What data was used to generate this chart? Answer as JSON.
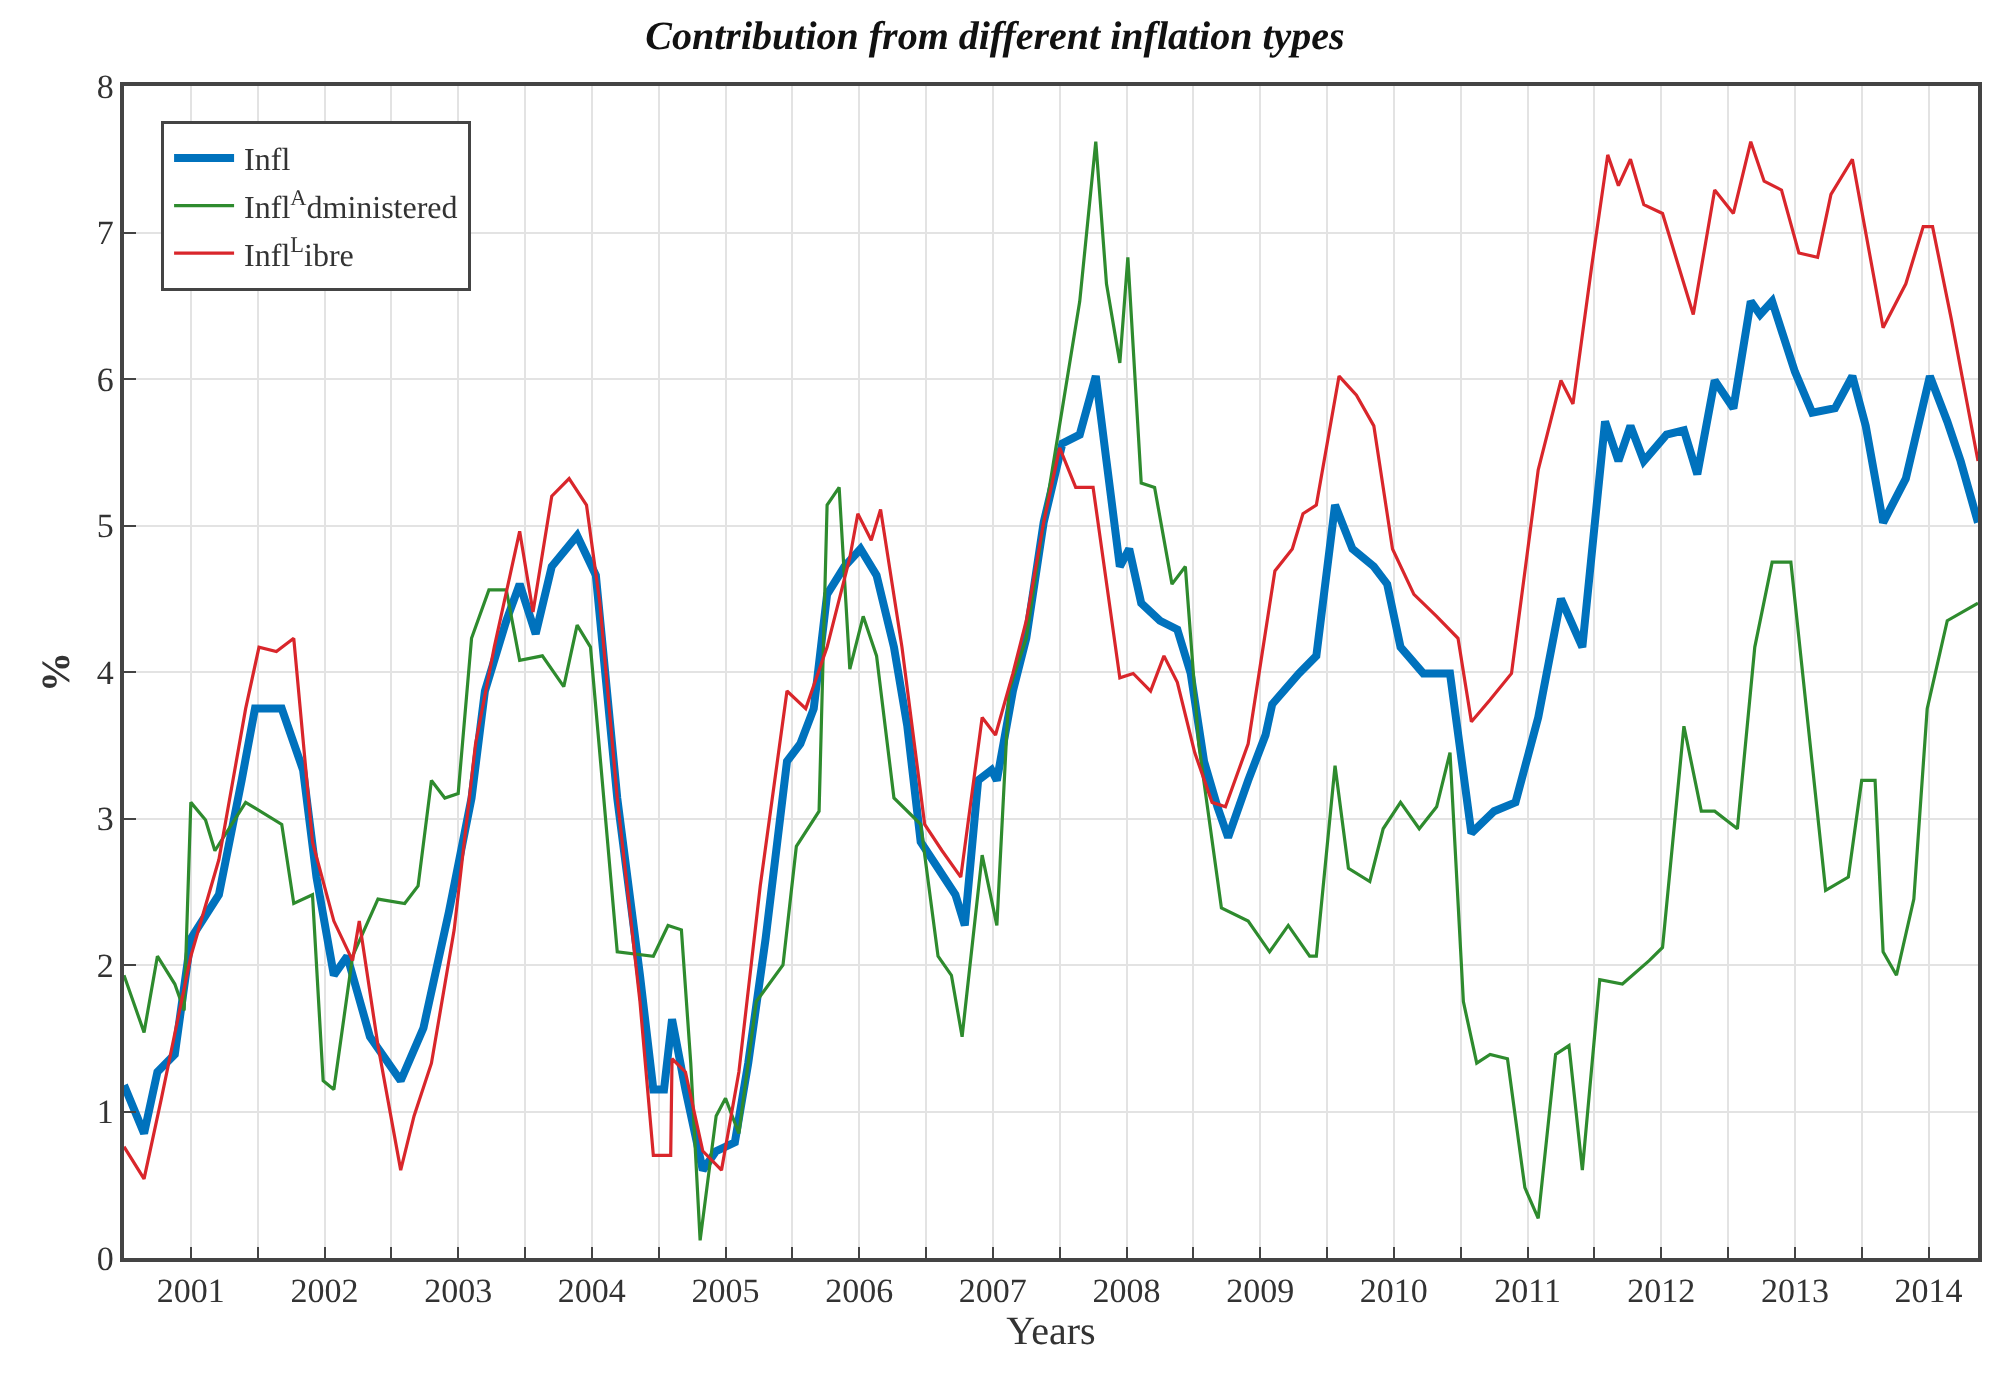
{
  "chart_data": {
    "type": "line",
    "title": "Contribution from different inflation types",
    "xlabel": "Years",
    "ylabel": "%",
    "xlim": [
      2000.5,
      2014.37
    ],
    "ylim": [
      0,
      8
    ],
    "xticks": [
      2001,
      {
        "value": 2001.5,
        "label": null
      },
      2002,
      {
        "value": 2002.5,
        "label": null
      },
      2003,
      {
        "value": 2003.5,
        "label": null
      },
      2004,
      {
        "value": 2004.5,
        "label": null
      },
      2005,
      {
        "value": 2005.5,
        "label": null
      },
      2006,
      {
        "value": 2006.5,
        "label": null
      },
      2007,
      {
        "value": 2007.5,
        "label": null
      },
      2008,
      {
        "value": 2008.5,
        "label": null
      },
      2009,
      {
        "value": 2009.5,
        "label": null
      },
      2010,
      {
        "value": 2010.5,
        "label": null
      },
      2011,
      {
        "value": 2011.5,
        "label": null
      },
      2012,
      {
        "value": 2012.5,
        "label": null
      },
      2013,
      {
        "value": 2013.5,
        "label": null
      },
      2014
    ],
    "yticks": [
      0,
      1,
      2,
      3,
      4,
      5,
      6,
      7,
      8
    ],
    "grid": true,
    "legend": "top left",
    "marker": "none",
    "series": [
      {
        "name": "Infl",
        "color": "#0072bd",
        "x": [
          2000.5,
          2000.65,
          2000.75,
          2000.88,
          2001.0,
          2001.21,
          2001.38,
          2001.48,
          2001.68,
          2001.84,
          2001.94,
          2002.07,
          2002.17,
          2002.34,
          2002.57,
          2002.74,
          2002.93,
          2003.1,
          2003.2,
          2003.36,
          2003.46,
          2003.58,
          2003.7,
          2003.89,
          2004.03,
          2004.19,
          2004.36,
          2004.46,
          2004.54,
          2004.6,
          2004.7,
          2004.83,
          2004.93,
          2005.07,
          2005.17,
          2005.3,
          2005.46,
          2005.56,
          2005.66,
          2005.76,
          2005.89,
          2006.01,
          2006.13,
          2006.26,
          2006.36,
          2006.46,
          2006.59,
          2006.72,
          2006.79,
          2006.89,
          2006.99,
          2007.03,
          2007.15,
          2007.25,
          2007.38,
          2007.52,
          2007.65,
          2007.77,
          2007.85,
          2007.95,
          2008.02,
          2008.11,
          2008.25,
          2008.38,
          2008.48,
          2008.58,
          2008.68,
          2008.76,
          2008.91,
          2009.04,
          2009.09,
          2009.29,
          2009.42,
          2009.56,
          2009.69,
          2009.85,
          2009.95,
          2010.05,
          2010.22,
          2010.42,
          2010.58,
          2010.75,
          2010.91,
          2011.08,
          2011.25,
          2011.41,
          2011.58,
          2011.68,
          2011.77,
          2011.87,
          2012.04,
          2012.17,
          2012.27,
          2012.4,
          2012.54,
          2012.67,
          2012.74,
          2012.83,
          2013.0,
          2013.13,
          2013.3,
          2013.43,
          2013.53,
          2013.66,
          2013.83,
          2014.01,
          2014.14,
          2014.24,
          2014.37
        ],
        "values": [
          1.18,
          0.85,
          1.27,
          1.39,
          2.18,
          2.48,
          3.26,
          3.75,
          3.75,
          3.33,
          2.6,
          1.93,
          2.06,
          1.51,
          1.21,
          1.57,
          2.36,
          3.14,
          3.87,
          4.35,
          4.6,
          4.26,
          4.72,
          4.93,
          4.66,
          3.14,
          1.93,
          1.15,
          1.15,
          1.63,
          1.15,
          0.6,
          0.73,
          0.79,
          1.33,
          2.18,
          3.39,
          3.51,
          3.75,
          4.53,
          4.72,
          4.84,
          4.66,
          4.17,
          3.63,
          2.84,
          2.66,
          2.48,
          2.27,
          3.26,
          3.33,
          3.26,
          3.87,
          4.23,
          5.02,
          5.56,
          5.62,
          6.02,
          5.44,
          4.72,
          4.84,
          4.47,
          4.35,
          4.29,
          3.99,
          3.39,
          3.08,
          2.87,
          3.26,
          3.57,
          3.78,
          3.99,
          4.11,
          5.14,
          4.84,
          4.72,
          4.6,
          4.17,
          3.99,
          3.99,
          2.9,
          3.05,
          3.11,
          3.69,
          4.5,
          4.17,
          5.71,
          5.44,
          5.68,
          5.44,
          5.62,
          5.65,
          5.35,
          5.99,
          5.8,
          6.53,
          6.44,
          6.53,
          6.05,
          5.77,
          5.8,
          6.02,
          5.68,
          5.02,
          5.32,
          6.02,
          5.71,
          5.44,
          5.02
        ]
      },
      {
        "name": "Infl$^{A}$dministered",
        "color": "#2e8b2e",
        "x": [
          2000.5,
          2000.65,
          2000.75,
          2000.88,
          2000.95,
          2001.0,
          2001.11,
          2001.18,
          2001.41,
          2001.68,
          2001.77,
          2001.91,
          2001.99,
          2002.07,
          2002.21,
          2002.4,
          2002.6,
          2002.7,
          2002.8,
          2002.9,
          2003.0,
          2003.1,
          2003.23,
          2003.36,
          2003.46,
          2003.63,
          2003.79,
          2003.89,
          2003.99,
          2004.19,
          2004.46,
          2004.57,
          2004.67,
          2004.74,
          2004.81,
          2004.93,
          2005.0,
          2005.1,
          2005.23,
          2005.43,
          2005.53,
          2005.7,
          2005.76,
          2005.85,
          2005.93,
          2006.03,
          2006.13,
          2006.26,
          2006.46,
          2006.59,
          2006.69,
          2006.77,
          2006.92,
          2007.03,
          2007.12,
          2007.25,
          2007.38,
          2007.52,
          2007.65,
          2007.77,
          2007.85,
          2007.95,
          2008.01,
          2008.11,
          2008.21,
          2008.34,
          2008.44,
          2008.54,
          2008.71,
          2008.91,
          2009.07,
          2009.21,
          2009.37,
          2009.42,
          2009.56,
          2009.66,
          2009.82,
          2009.92,
          2010.05,
          2010.19,
          2010.32,
          2010.42,
          2010.52,
          2010.62,
          2010.72,
          2010.85,
          2010.98,
          2011.08,
          2011.21,
          2011.31,
          2011.41,
          2011.54,
          2011.71,
          2011.91,
          2012.01,
          2012.17,
          2012.3,
          2012.4,
          2012.57,
          2012.7,
          2012.83,
          2012.97,
          2013.23,
          2013.4,
          2013.5,
          2013.6,
          2013.66,
          2013.76,
          2013.89,
          2013.99,
          2014.14,
          2014.37
        ],
        "values": [
          1.93,
          1.54,
          2.06,
          1.87,
          1.69,
          3.11,
          2.99,
          2.78,
          3.11,
          2.96,
          2.42,
          2.48,
          1.21,
          1.15,
          2.06,
          2.45,
          2.42,
          2.54,
          3.26,
          3.14,
          3.17,
          4.23,
          4.56,
          4.56,
          4.08,
          4.11,
          3.9,
          4.32,
          4.17,
          2.09,
          2.06,
          2.27,
          2.24,
          1.33,
          0.12,
          0.97,
          1.09,
          0.85,
          1.75,
          2.0,
          2.81,
          3.05,
          5.14,
          5.26,
          4.02,
          4.38,
          4.11,
          3.14,
          2.96,
          2.06,
          1.93,
          1.51,
          2.75,
          2.27,
          3.87,
          4.23,
          5.02,
          5.8,
          6.53,
          7.62,
          6.65,
          6.11,
          6.83,
          5.29,
          5.26,
          4.6,
          4.72,
          3.51,
          2.39,
          2.3,
          2.09,
          2.27,
          2.06,
          2.06,
          3.36,
          2.66,
          2.57,
          2.93,
          3.11,
          2.93,
          3.08,
          3.45,
          1.75,
          1.33,
          1.39,
          1.36,
          0.48,
          0.27,
          1.39,
          1.45,
          0.6,
          1.9,
          1.87,
          2.03,
          2.12,
          3.63,
          3.05,
          3.05,
          2.93,
          4.17,
          4.75,
          4.75,
          2.51,
          2.6,
          3.26,
          3.26,
          2.09,
          1.93,
          2.45,
          3.75,
          4.35,
          4.47
        ]
      },
      {
        "name": "Infl$^{L}$ibre",
        "color": "#d9262b",
        "x": [
          2000.5,
          2000.65,
          2000.78,
          2001.0,
          2001.21,
          2001.41,
          2001.51,
          2001.64,
          2001.77,
          2001.91,
          2002.07,
          2002.21,
          2002.26,
          2002.4,
          2002.57,
          2002.67,
          2002.8,
          2002.97,
          2003.13,
          2003.27,
          2003.46,
          2003.56,
          2003.7,
          2003.83,
          2003.96,
          2004.06,
          2004.19,
          2004.36,
          2004.46,
          2004.59,
          2004.6,
          2004.7,
          2004.83,
          2004.97,
          2005.1,
          2005.26,
          2005.46,
          2005.6,
          2005.76,
          2005.93,
          2005.99,
          2006.09,
          2006.16,
          2006.32,
          2006.49,
          2006.62,
          2006.76,
          2006.92,
          2007.02,
          2007.15,
          2007.25,
          2007.38,
          2007.5,
          2007.62,
          2007.75,
          2007.95,
          2008.05,
          2008.18,
          2008.28,
          2008.38,
          2008.51,
          2008.64,
          2008.74,
          2008.91,
          2009.11,
          2009.24,
          2009.32,
          2009.42,
          2009.59,
          2009.72,
          2009.85,
          2009.99,
          2010.15,
          2010.32,
          2010.48,
          2010.58,
          2010.72,
          2010.88,
          2011.08,
          2011.25,
          2011.34,
          2011.48,
          2011.6,
          2011.68,
          2011.77,
          2011.87,
          2012.01,
          2012.24,
          2012.4,
          2012.54,
          2012.67,
          2012.77,
          2012.9,
          2013.03,
          2013.17,
          2013.27,
          2013.43,
          2013.66,
          2013.83,
          2013.96,
          2014.03,
          2014.17,
          2014.37
        ],
        "values": [
          0.76,
          0.54,
          1.09,
          2.06,
          2.72,
          3.75,
          4.17,
          4.14,
          4.23,
          2.84,
          2.3,
          2.03,
          2.3,
          1.45,
          0.6,
          0.97,
          1.33,
          2.24,
          3.51,
          4.17,
          4.96,
          4.41,
          5.2,
          5.32,
          5.14,
          4.47,
          3.14,
          1.75,
          0.7,
          0.7,
          1.36,
          1.27,
          0.73,
          0.6,
          1.27,
          2.54,
          3.87,
          3.75,
          4.17,
          4.78,
          5.08,
          4.9,
          5.11,
          4.17,
          2.96,
          2.78,
          2.6,
          3.69,
          3.57,
          3.99,
          4.35,
          5.02,
          5.53,
          5.26,
          5.26,
          3.96,
          3.99,
          3.87,
          4.11,
          3.93,
          3.45,
          3.11,
          3.08,
          3.51,
          4.69,
          4.84,
          5.08,
          5.14,
          6.02,
          5.89,
          5.68,
          4.84,
          4.53,
          4.38,
          4.23,
          3.66,
          3.81,
          3.99,
          5.38,
          5.99,
          5.83,
          6.77,
          7.53,
          7.32,
          7.5,
          7.19,
          7.13,
          6.44,
          7.29,
          7.13,
          7.62,
          7.35,
          7.29,
          6.86,
          6.83,
          7.26,
          7.5,
          6.35,
          6.65,
          7.04,
          7.04,
          6.41,
          5.44
        ]
      }
    ]
  }
}
